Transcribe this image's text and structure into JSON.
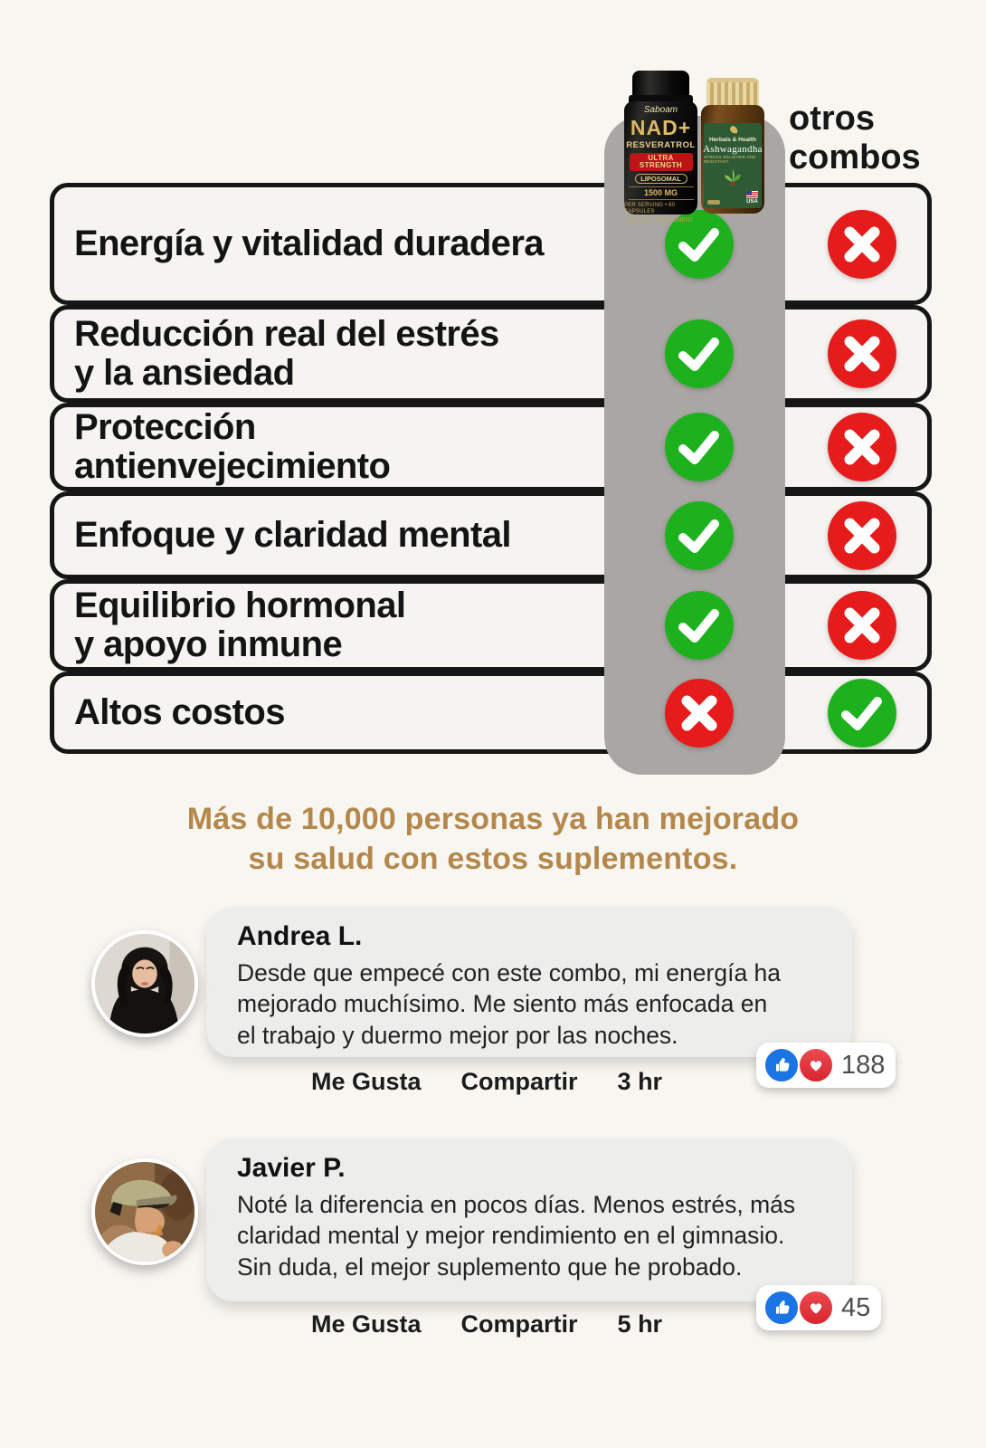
{
  "colors": {
    "background": "#f8f6f1",
    "row_bg": "#f5f4f1",
    "border_black": "#161616",
    "pill_gray": "#a9a7a4",
    "check_green": "#1db21d",
    "cross_red": "#e61c1c",
    "headline_gold": "#b5874b",
    "bubble_gray": "#ededeb",
    "like_blue": "#1b74e4",
    "love_red": "#d8252e"
  },
  "products": {
    "column_other_label_line1": "otros",
    "column_other_label_line2": "combos",
    "bottle_nad": {
      "brand": "Saboam",
      "name": "NAD+",
      "subname": "RESVERATROL",
      "band": "ULTRA STRENGTH",
      "pill_tag": "LIPOSOMAL",
      "dose": "1500 MG",
      "fine_print_1": "PER SERVING • 60 CAPSULES",
      "fine_print_2": "DIETARY SUPPLEMENT"
    },
    "bottle_ashwagandha": {
      "brand": "Herbals & Health",
      "name": "Ashwagandha",
      "tagline": "STRESS RELIEVER AND RESISTANT",
      "origin": "USA"
    }
  },
  "comparison": {
    "rows": [
      {
        "label": "Energía y vitalidad duradera",
        "ours": "check",
        "others": "cross"
      },
      {
        "label": "Reducción real del estrés\ny la ansiedad",
        "ours": "check",
        "others": "cross"
      },
      {
        "label": "Protección\nantienvejecimiento",
        "ours": "check",
        "others": "cross"
      },
      {
        "label": "Enfoque y claridad mental",
        "ours": "check",
        "others": "cross"
      },
      {
        "label": "Equilibrio hormonal\ny apoyo inmune",
        "ours": "check",
        "others": "cross"
      },
      {
        "label": "Altos costos",
        "ours": "cross",
        "others": "check"
      }
    ]
  },
  "headline": {
    "line1": "Más de 10,000 personas ya han mejorado",
    "line2": "su salud con estos suplementos."
  },
  "reviews": [
    {
      "name": "Andrea L.",
      "lines": [
        "Desde que empecé con este combo, mi energía ha",
        "mejorado muchísimo. Me siento más enfocada en",
        "el trabajo y duermo mejor por las noches."
      ],
      "like_label": "Me Gusta",
      "share_label": "Compartir",
      "time": "3 hr",
      "reaction_count": "188"
    },
    {
      "name": "Javier P.",
      "lines": [
        "Noté la diferencia en pocos días. Menos estrés, más",
        "claridad mental y mejor rendimiento en el gimnasio.",
        "Sin duda, el mejor suplemento que he probado."
      ],
      "like_label": "Me Gusta",
      "share_label": "Compartir",
      "time": "5 hr",
      "reaction_count": "45"
    }
  ]
}
